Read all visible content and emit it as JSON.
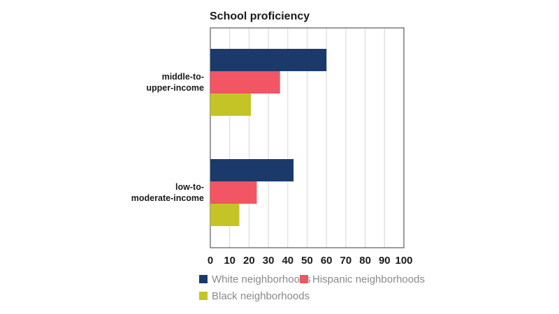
{
  "chart_data": {
    "type": "bar",
    "orientation": "horizontal",
    "title": "School proficiency",
    "categories": [
      "middle-to-upper-income",
      "low-to-moderate-income"
    ],
    "category_lines": [
      [
        "middle-to-",
        "upper-income"
      ],
      [
        "low-to-",
        "moderate-income"
      ]
    ],
    "series": [
      {
        "name": "White neighborhoods",
        "color": "#1b3a6b",
        "values": [
          60,
          43
        ]
      },
      {
        "name": "Hispanic neighborhoods",
        "color": "#f25563",
        "values": [
          36,
          24
        ]
      },
      {
        "name": "Black neighborhoods",
        "color": "#c5c426",
        "values": [
          21,
          15
        ]
      }
    ],
    "xlim": [
      0,
      100
    ],
    "xticks": [
      0,
      10,
      20,
      30,
      40,
      50,
      60,
      70,
      80,
      90,
      100
    ],
    "grid": true,
    "legend_position": "bottom"
  }
}
